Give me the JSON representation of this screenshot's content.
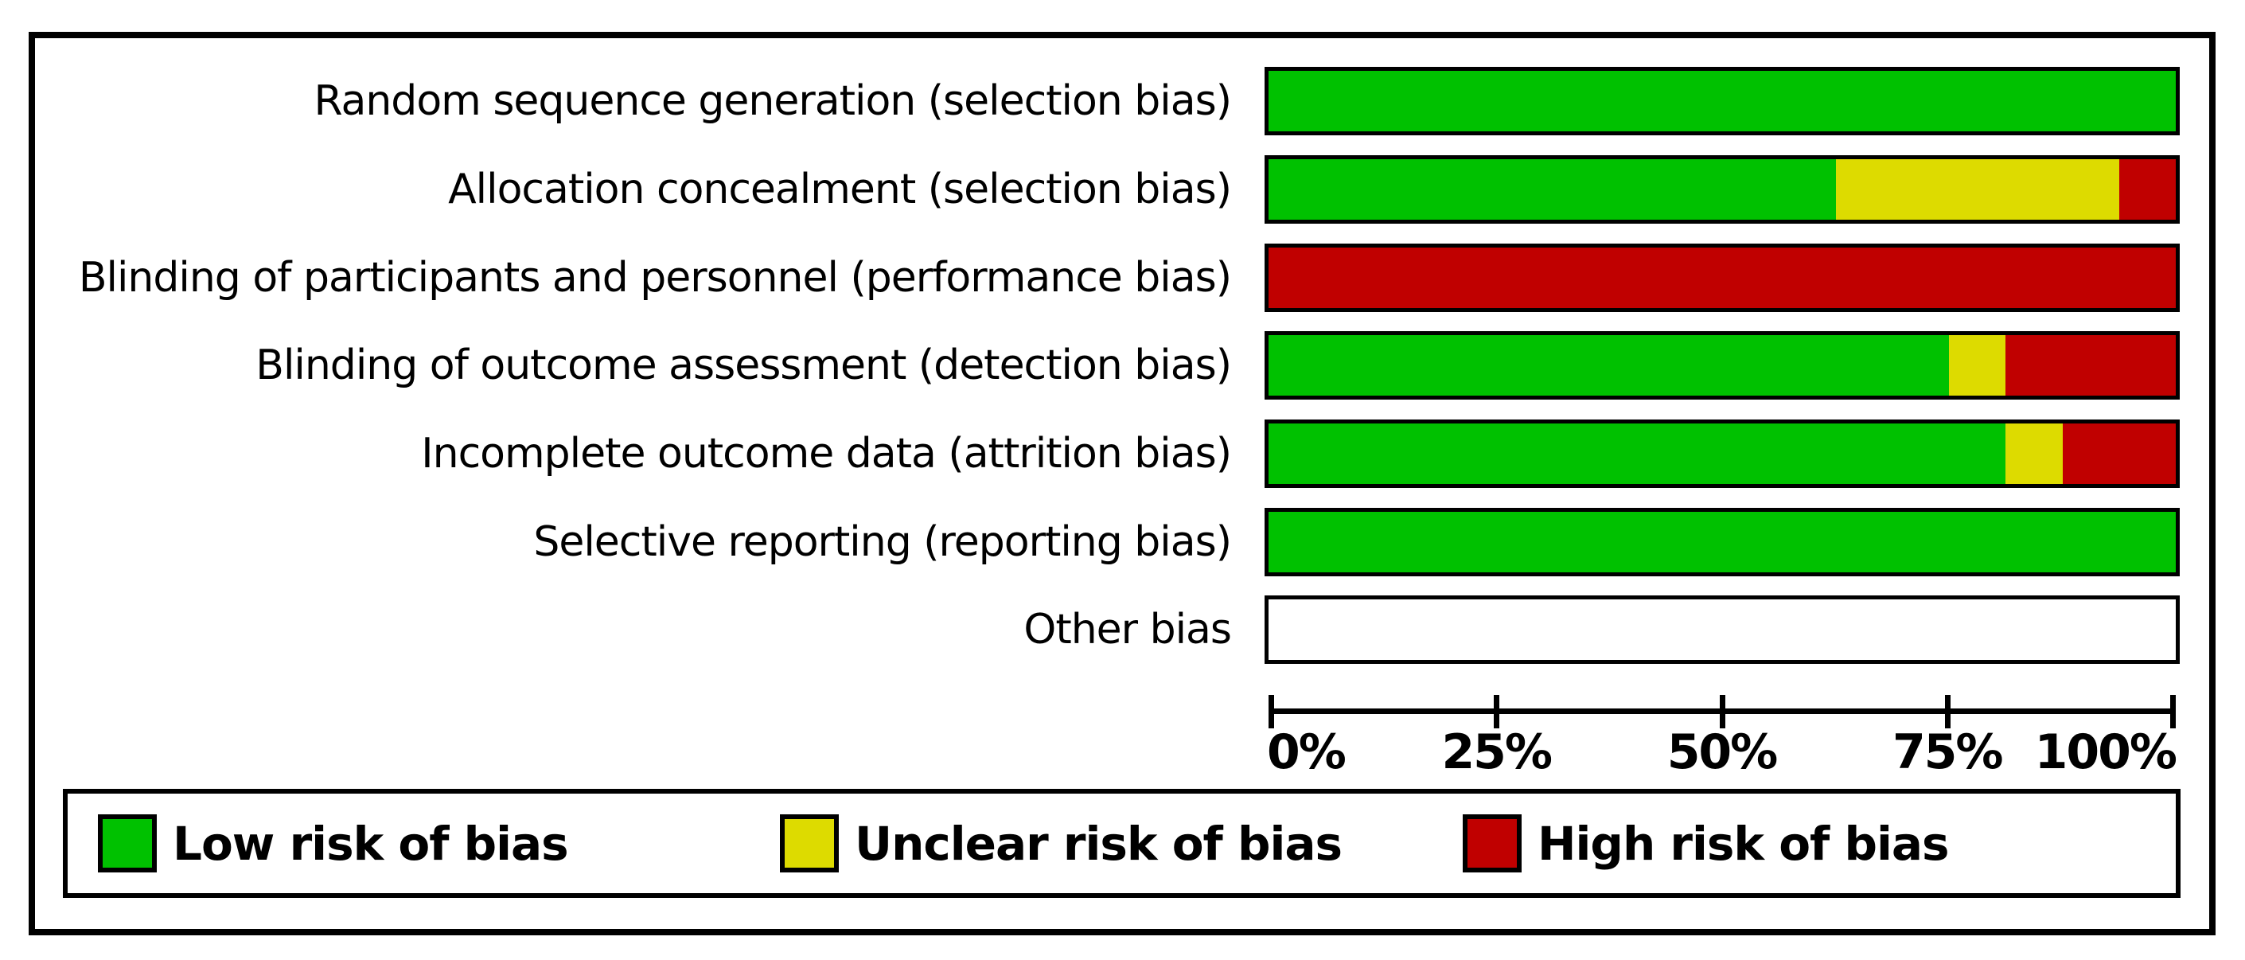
{
  "chart_data": {
    "type": "bar",
    "orientation": "horizontal-stacked",
    "title": "",
    "xlabel": "",
    "ylabel": "",
    "xlim": [
      0,
      100
    ],
    "grid": false,
    "legend_position": "bottom",
    "categories": [
      "Random sequence generation (selection bias)",
      "Allocation concealment (selection bias)",
      "Blinding of participants and personnel (performance bias)",
      "Blinding of outcome assessment (detection bias)",
      "Incomplete outcome data (attrition bias)",
      "Selective reporting (reporting bias)",
      "Other bias"
    ],
    "series": [
      {
        "name": "Low risk of bias",
        "color": "#00C100",
        "values": [
          100,
          62.5,
          0,
          75,
          81.25,
          100,
          0
        ]
      },
      {
        "name": "Unclear risk of bias",
        "color": "#DDDB00",
        "values": [
          0,
          31.25,
          0,
          6.25,
          6.25,
          0,
          0
        ]
      },
      {
        "name": "High risk of bias",
        "color": "#C00000",
        "values": [
          0,
          6.25,
          100,
          18.75,
          12.5,
          0,
          0
        ]
      }
    ],
    "x_tick_labels": [
      "0%",
      "25%",
      "50%",
      "75%",
      "100%"
    ]
  },
  "colors": {
    "low_risk": "#00C100",
    "unclear_risk": "#DDDB00",
    "high_risk": "#C00000",
    "frame_border": "#000000",
    "background": "#FFFFFF"
  }
}
